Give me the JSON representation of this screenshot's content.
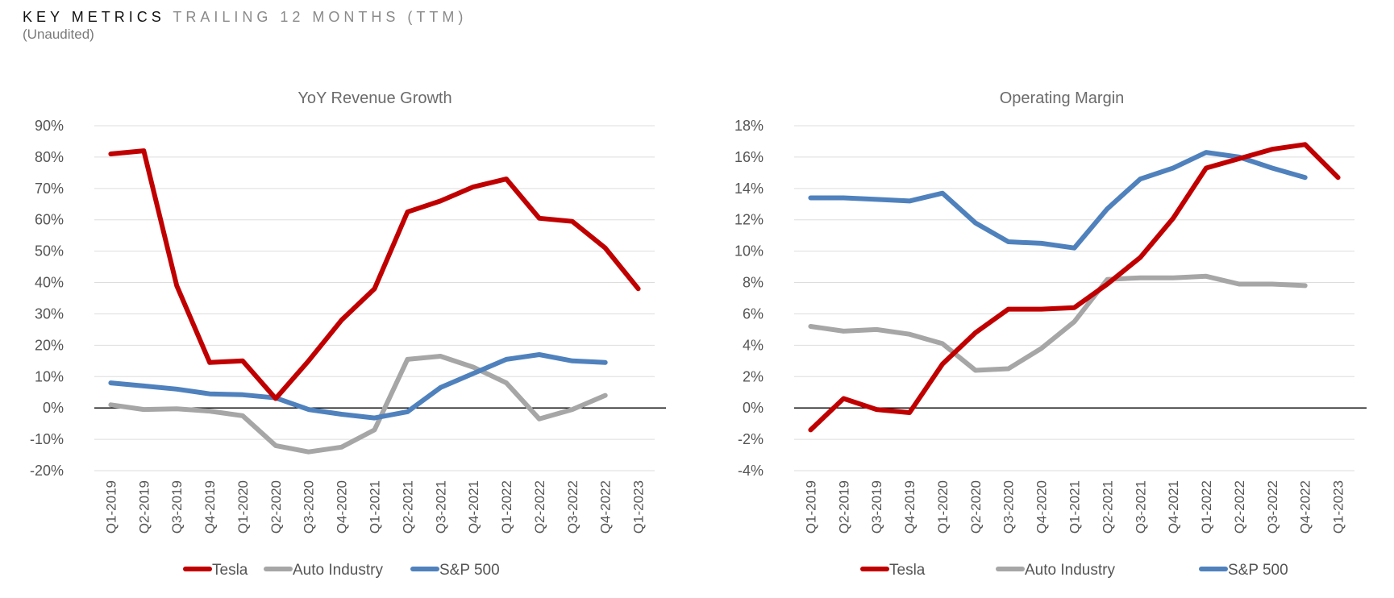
{
  "header": {
    "title_strong": "KEY METRICS",
    "title_light": "TRAILING 12 MONTHS (TTM)",
    "subtitle": "(Unaudited)"
  },
  "colors": {
    "tesla": "#c00000",
    "auto": "#a6a6a6",
    "sp500": "#4f81bd"
  },
  "chart_data": [
    {
      "type": "line",
      "title": "YoY Revenue Growth",
      "xlabel": "",
      "ylabel": "",
      "ylim": [
        -20,
        90
      ],
      "ystep": 10,
      "yformat": "percent",
      "categories": [
        "Q1-2019",
        "Q2-2019",
        "Q3-2019",
        "Q4-2019",
        "Q1-2020",
        "Q2-2020",
        "Q3-2020",
        "Q4-2020",
        "Q1-2021",
        "Q2-2021",
        "Q3-2021",
        "Q4-2021",
        "Q1-2022",
        "Q2-2022",
        "Q3-2022",
        "Q4-2022",
        "Q1-2023"
      ],
      "legend": "bottom",
      "series": [
        {
          "name": "Tesla",
          "color": "#c00000",
          "values": [
            81,
            82,
            39,
            14.5,
            15,
            3,
            15,
            28,
            38,
            62.5,
            66,
            70.5,
            73,
            60.5,
            59.5,
            51,
            38
          ]
        },
        {
          "name": "Auto Industry",
          "color": "#a6a6a6",
          "values": [
            1,
            -0.5,
            -0.3,
            -1,
            -2.5,
            -12,
            -14,
            -12.5,
            -7,
            15.5,
            16.5,
            13,
            8,
            -3.5,
            -0.5,
            4,
            null
          ]
        },
        {
          "name": "S&P 500",
          "color": "#4f81bd",
          "values": [
            8,
            7,
            6,
            4.5,
            4.2,
            3.2,
            -0.5,
            -2,
            -3.2,
            -1.2,
            6.5,
            11,
            15.5,
            17,
            15,
            14.5,
            null
          ]
        }
      ]
    },
    {
      "type": "line",
      "title": "Operating Margin",
      "xlabel": "",
      "ylabel": "",
      "ylim": [
        -4,
        18
      ],
      "ystep": 2,
      "yformat": "percent",
      "categories": [
        "Q1-2019",
        "Q2-2019",
        "Q3-2019",
        "Q4-2019",
        "Q1-2020",
        "Q2-2020",
        "Q3-2020",
        "Q4-2020",
        "Q1-2021",
        "Q2-2021",
        "Q3-2021",
        "Q4-2021",
        "Q1-2022",
        "Q2-2022",
        "Q3-2022",
        "Q4-2022",
        "Q1-2023"
      ],
      "legend": "bottom",
      "series": [
        {
          "name": "Tesla",
          "color": "#c00000",
          "values": [
            -1.4,
            0.6,
            -0.1,
            -0.3,
            2.8,
            4.8,
            6.3,
            6.3,
            6.4,
            7.9,
            9.6,
            12.1,
            15.3,
            15.9,
            16.5,
            16.8,
            14.7
          ]
        },
        {
          "name": "Auto Industry",
          "color": "#a6a6a6",
          "values": [
            5.2,
            4.9,
            5.0,
            4.7,
            4.1,
            2.4,
            2.5,
            3.8,
            5.5,
            8.2,
            8.3,
            8.3,
            8.4,
            7.9,
            7.9,
            7.8,
            null
          ]
        },
        {
          "name": "S&P 500",
          "color": "#4f81bd",
          "values": [
            13.4,
            13.4,
            13.3,
            13.2,
            13.7,
            11.8,
            10.6,
            10.5,
            10.2,
            12.7,
            14.6,
            15.3,
            16.3,
            16.0,
            15.3,
            14.7,
            null
          ]
        }
      ]
    }
  ]
}
